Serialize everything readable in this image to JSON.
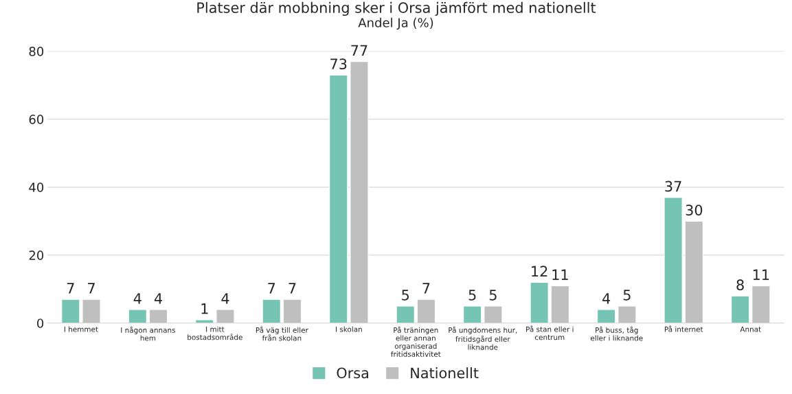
{
  "chart_data": {
    "type": "bar",
    "title": "Platser där mobbning sker i Orsa jämfört med nationellt",
    "subtitle": "Andel Ja (%)",
    "categories": [
      "I hemmet",
      "I någon annans hem",
      "I mitt bostadsområde",
      "På väg till eller från skolan",
      "I skolan",
      "På träningen eller annan organiserad fritidsaktivitet",
      "På ungdomens hur, fritidsgård eller liknande",
      "På stan eller i centrum",
      "På buss, tåg eller i liknande",
      "På internet",
      "Annat"
    ],
    "series": [
      {
        "name": "Orsa",
        "color": "#76c4b4",
        "values": [
          7,
          4,
          1,
          7,
          73,
          5,
          5,
          12,
          4,
          37,
          8
        ]
      },
      {
        "name": "Nationellt",
        "color": "#bfbfbf",
        "values": [
          7,
          4,
          4,
          7,
          77,
          7,
          5,
          11,
          5,
          30,
          11
        ]
      }
    ],
    "ylim": [
      0,
      80
    ],
    "yticks": [
      0,
      20,
      40,
      60,
      80
    ],
    "grid": "y",
    "legend": "bottom",
    "data_labels": true
  }
}
